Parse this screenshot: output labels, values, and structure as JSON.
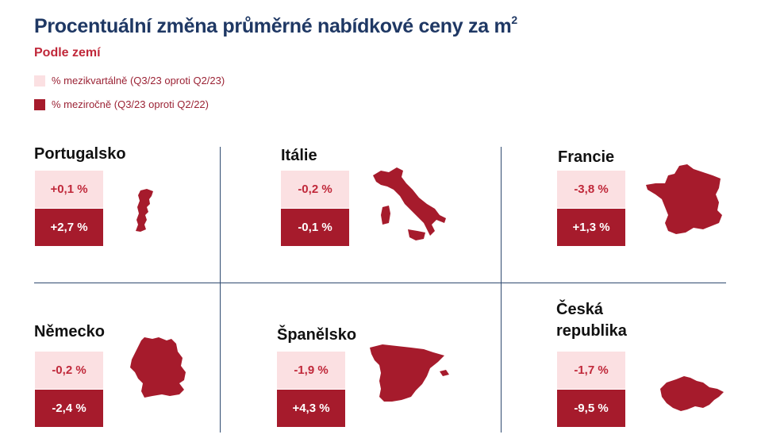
{
  "header": {
    "title": "Procentuální změna průměrné nabídkové ceny za m",
    "title_sup": "2",
    "subtitle": "Podle zemí"
  },
  "legend": {
    "items": [
      {
        "label": "% mezikvartálně (Q3/23 oproti Q2/23)",
        "color": "#fbe0e2"
      },
      {
        "label": "% meziročně (Q3/23 oproti Q2/22)",
        "color": "#a61b2c"
      }
    ]
  },
  "colors": {
    "qoq_fill": "#fbe0e2",
    "yoy_fill": "#a61b2c",
    "map_fill": "#a61b2c",
    "title": "#1f3864",
    "accent": "#c0283a"
  },
  "chart_data": {
    "type": "table",
    "series": [
      {
        "name": "% mezikvartálně (Q3/23 oproti Q2/23)"
      },
      {
        "name": "% meziročně (Q3/23 oproti Q2/22)"
      }
    ],
    "countries": [
      {
        "name": "Portugalsko",
        "qoq": 0.1,
        "yoy": 2.7,
        "qoq_label": "+0,1 %",
        "yoy_label": "+2,7 %",
        "map_icon": "portugal-map-icon"
      },
      {
        "name": "Itálie",
        "qoq": -0.2,
        "yoy": -0.1,
        "qoq_label": "-0,2 %",
        "yoy_label": "-0,1 %",
        "map_icon": "italy-map-icon"
      },
      {
        "name": "Francie",
        "qoq": -3.8,
        "yoy": 1.3,
        "qoq_label": "-3,8 %",
        "yoy_label": "+1,3 %",
        "map_icon": "france-map-icon"
      },
      {
        "name": "Německo",
        "qoq": -0.2,
        "yoy": -2.4,
        "qoq_label": "-0,2 %",
        "yoy_label": "-2,4 %",
        "map_icon": "germany-map-icon"
      },
      {
        "name": "Španělsko",
        "qoq": -1.9,
        "yoy": 4.3,
        "qoq_label": "-1,9 %",
        "yoy_label": "+4,3 %",
        "map_icon": "spain-map-icon"
      },
      {
        "name": "Česká republika",
        "qoq": -1.7,
        "yoy": -9.5,
        "qoq_label": "-1,7 %",
        "yoy_label": "-9,5 %",
        "map_icon": "czech-map-icon"
      }
    ]
  }
}
